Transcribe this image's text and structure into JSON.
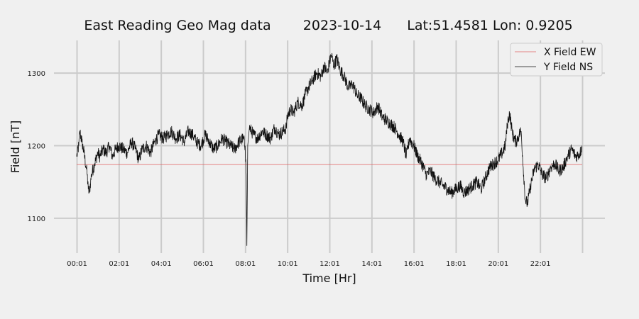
{
  "chart_data": {
    "type": "line",
    "title_parts": [
      "East Reading Geo Mag data",
      "2023-10-14",
      "Lat:51.4581  Lon: 0.9205"
    ],
    "xlabel": "Time  [Hr]",
    "ylabel": "Field  [nT]",
    "xlim": [
      0.0,
      24.0
    ],
    "ylim": [
      1052,
      1345
    ],
    "x_ticks": [
      0.0167,
      2.0167,
      4.0167,
      6.0167,
      8.0167,
      10.0167,
      12.0167,
      14.0167,
      16.0167,
      18.0167,
      20.0167,
      22.0167,
      24.0167
    ],
    "x_tick_labels": [
      "00:01",
      "02:01",
      "04:01",
      "06:01",
      "08:01",
      "10:01",
      "12:01",
      "14:01",
      "16:01",
      "18:01",
      "20:01",
      "22:01",
      ""
    ],
    "y_ticks": [
      1100,
      1200,
      1300
    ],
    "y_tick_labels": [
      "1100",
      "1200",
      "1300"
    ],
    "grid": true,
    "legend_position": "top-right",
    "series": [
      {
        "name": "X Field EW",
        "color": "#e06060",
        "x": [
          0.0,
          24.0
        ],
        "y": [
          1174,
          1174
        ]
      },
      {
        "name": "Y Field NS",
        "color": "#111111",
        "x": [
          0.0,
          0.1,
          0.15,
          0.25,
          0.35,
          0.45,
          0.5,
          0.55,
          0.6,
          0.7,
          0.85,
          1.0,
          1.1,
          1.25,
          1.4,
          1.55,
          1.7,
          1.85,
          2.0,
          2.2,
          2.4,
          2.6,
          2.8,
          2.95,
          3.1,
          3.3,
          3.5,
          3.7,
          3.9,
          4.1,
          4.3,
          4.5,
          4.7,
          4.9,
          5.1,
          5.3,
          5.5,
          5.7,
          5.9,
          6.1,
          6.3,
          6.5,
          6.7,
          6.9,
          7.1,
          7.3,
          7.5,
          7.7,
          7.9,
          8.0,
          8.05,
          8.08,
          8.12,
          8.2,
          8.4,
          8.6,
          8.8,
          9.0,
          9.2,
          9.4,
          9.6,
          9.8,
          9.95,
          10.0,
          10.15,
          10.3,
          10.5,
          10.7,
          10.85,
          11.0,
          11.2,
          11.4,
          11.6,
          11.75,
          11.9,
          12.0,
          12.1,
          12.2,
          12.35,
          12.5,
          12.7,
          12.9,
          13.1,
          13.3,
          13.5,
          13.7,
          13.9,
          14.1,
          14.3,
          14.5,
          14.7,
          14.9,
          15.1,
          15.3,
          15.5,
          15.65,
          15.8,
          16.0,
          16.2,
          16.4,
          16.6,
          16.8,
          17.0,
          17.2,
          17.4,
          17.6,
          17.8,
          18.0,
          18.2,
          18.4,
          18.6,
          18.8,
          19.0,
          19.2,
          19.4,
          19.6,
          19.8,
          20.0,
          20.2,
          20.35,
          20.45,
          20.55,
          20.7,
          20.85,
          21.0,
          21.1,
          21.2,
          21.3,
          21.4,
          21.55,
          21.7,
          21.9,
          22.1,
          22.3,
          22.5,
          22.7,
          22.9,
          23.1,
          23.3,
          23.5,
          23.7,
          23.9,
          24.0
        ],
        "y": [
          1185,
          1200,
          1220,
          1205,
          1190,
          1170,
          1160,
          1140,
          1135,
          1160,
          1175,
          1190,
          1185,
          1195,
          1190,
          1200,
          1185,
          1195,
          1200,
          1195,
          1190,
          1205,
          1195,
          1180,
          1195,
          1200,
          1190,
          1205,
          1215,
          1210,
          1215,
          1220,
          1210,
          1215,
          1205,
          1220,
          1215,
          1205,
          1200,
          1215,
          1205,
          1195,
          1200,
          1210,
          1205,
          1200,
          1195,
          1205,
          1210,
          1200,
          1160,
          1062,
          1200,
          1225,
          1215,
          1210,
          1220,
          1215,
          1210,
          1225,
          1215,
          1220,
          1225,
          1240,
          1250,
          1245,
          1260,
          1255,
          1270,
          1280,
          1290,
          1300,
          1295,
          1310,
          1300,
          1315,
          1325,
          1310,
          1320,
          1305,
          1295,
          1280,
          1285,
          1270,
          1265,
          1255,
          1250,
          1245,
          1255,
          1240,
          1235,
          1230,
          1225,
          1215,
          1205,
          1185,
          1210,
          1200,
          1185,
          1175,
          1160,
          1165,
          1155,
          1150,
          1145,
          1140,
          1135,
          1140,
          1145,
          1135,
          1140,
          1145,
          1150,
          1140,
          1155,
          1170,
          1175,
          1180,
          1190,
          1200,
          1230,
          1245,
          1215,
          1205,
          1215,
          1220,
          1170,
          1125,
          1120,
          1145,
          1165,
          1175,
          1160,
          1155,
          1170,
          1175,
          1165,
          1170,
          1185,
          1195,
          1185,
          1190,
          1200
        ]
      }
    ]
  }
}
